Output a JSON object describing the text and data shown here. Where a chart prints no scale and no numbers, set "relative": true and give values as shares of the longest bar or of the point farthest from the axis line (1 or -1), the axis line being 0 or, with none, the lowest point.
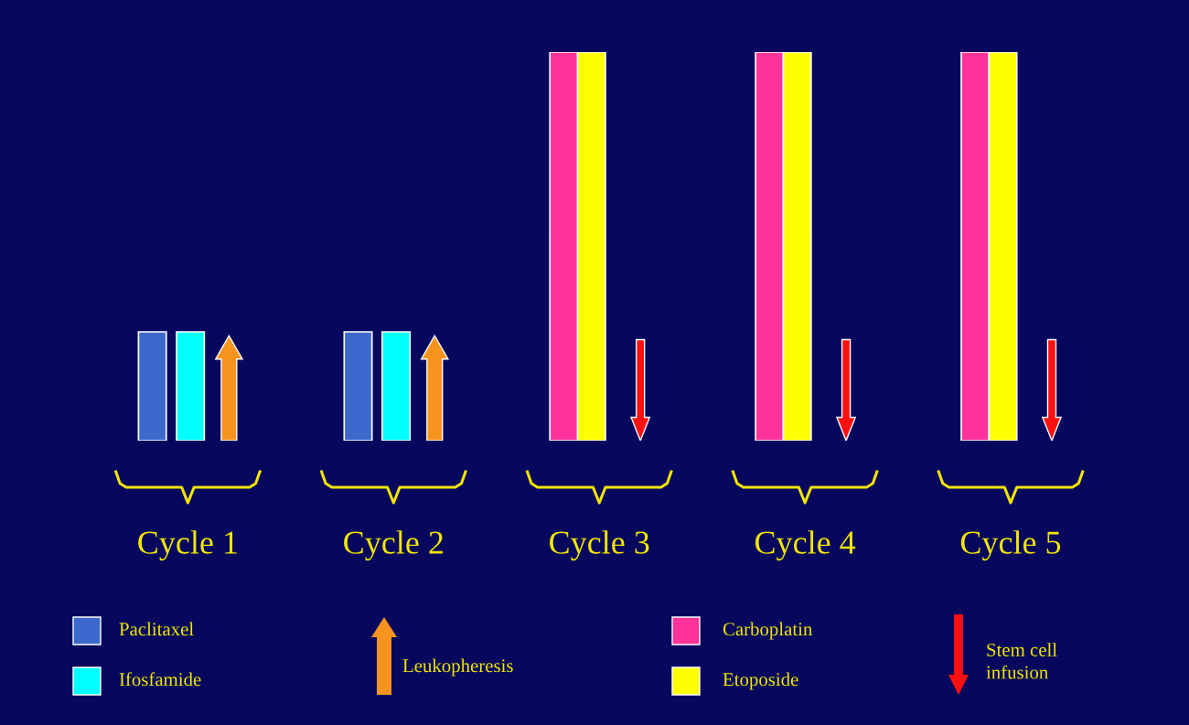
{
  "chart_data": {
    "type": "bar",
    "relative": true,
    "categories": [
      "Cycle 1",
      "Cycle 2",
      "Cycle 3",
      "Cycle 4",
      "Cycle 5"
    ],
    "series": [
      {
        "name": "Paclitaxel",
        "color": "#3d68cc",
        "values": [
          0.28,
          0.28,
          null,
          null,
          null
        ]
      },
      {
        "name": "Ifosfamide",
        "color": "#00ffff",
        "values": [
          0.28,
          0.28,
          null,
          null,
          null
        ]
      },
      {
        "name": "Carboplatin",
        "color": "#ff3399",
        "values": [
          null,
          null,
          1,
          1,
          1
        ]
      },
      {
        "name": "Etoposide",
        "color": "#ffff00",
        "values": [
          null,
          null,
          1,
          1,
          1
        ]
      }
    ],
    "annotations": [
      "Leukopheresis",
      "Stem cell\ninfusion"
    ],
    "legend": "bottom"
  }
}
